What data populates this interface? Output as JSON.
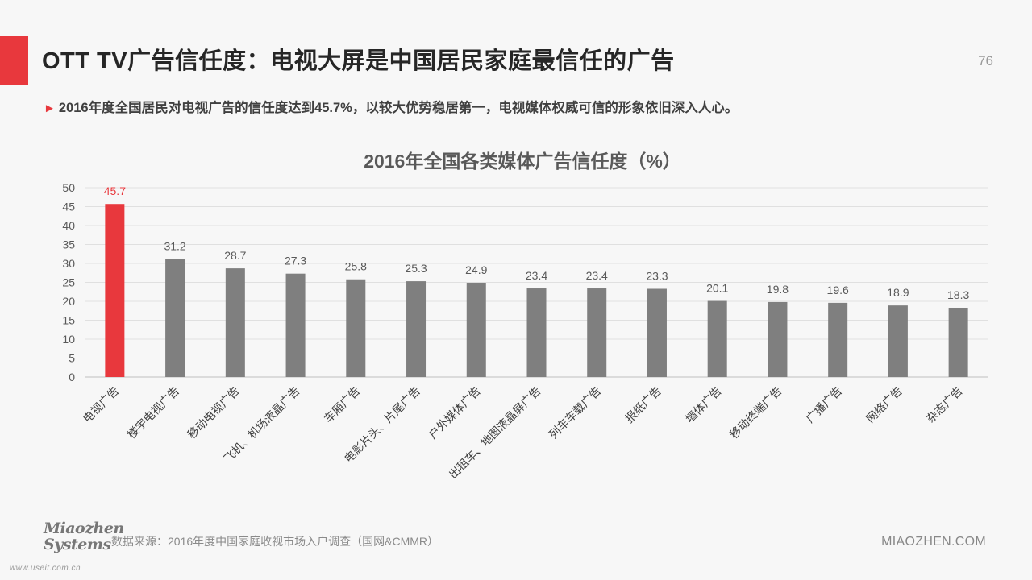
{
  "header": {
    "title": "OTT TV广告信任度：电视大屏是中国居民家庭最信任的广告",
    "page_number": "76"
  },
  "subtitle": {
    "marker": "►",
    "text": "2016年度全国居民对电视广告的信任度达到45.7%，以较大优势稳居第一，电视媒体权威可信的形象依旧深入人心。"
  },
  "chart_data": {
    "type": "bar",
    "title": "2016年全国各类媒体广告信任度（%）",
    "xlabel": "",
    "ylabel": "",
    "ylim": [
      0,
      50
    ],
    "yticks": [
      0,
      5,
      10,
      15,
      20,
      25,
      30,
      35,
      40,
      45,
      50
    ],
    "grid": true,
    "categories": [
      "电视广告",
      "楼宇电视广告",
      "移动电视广告",
      "飞机、机场液晶广告",
      "车厢广告",
      "电影片头、片尾广告",
      "户外媒体广告",
      "出租车、地图液晶屏广告",
      "列车车载广告",
      "报纸广告",
      "墙体广告",
      "移动终端广告",
      "广播广告",
      "网络广告",
      "杂志广告"
    ],
    "values": [
      45.7,
      31.2,
      28.7,
      27.3,
      25.8,
      25.3,
      24.9,
      23.4,
      23.4,
      23.3,
      20.1,
      19.8,
      19.6,
      18.9,
      18.3
    ],
    "highlight_index": 0,
    "colors": {
      "highlight": "#e8383d",
      "bar": "#7f7f7f",
      "highlight_label": "#e8383d",
      "label": "#595959",
      "grid": "#e0e0e0"
    }
  },
  "footer": {
    "source": "数据来源：2016年度中国家庭收视市场入户调查（国网&CMMR）",
    "logo_line1": "Miaozhen",
    "logo_line2": "Systems",
    "logo_url": "www.useit.com.cn",
    "site": "MIAOZHEN.COM"
  }
}
